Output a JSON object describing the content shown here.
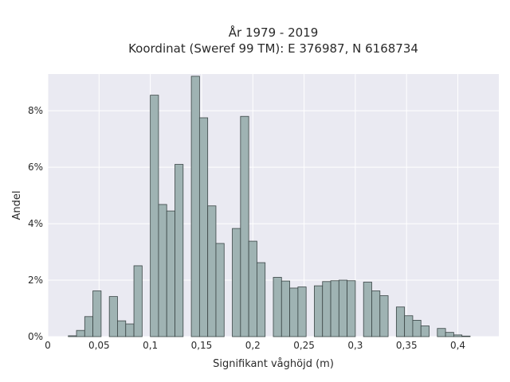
{
  "chart_data": {
    "type": "bar",
    "title": "År 1979 - 2019",
    "subtitle": "Koordinat (Sweref 99 TM): E 376987, N 6168734",
    "xlabel": "Signifikant våghöjd (m)",
    "ylabel": "Andel",
    "xlim": [
      0,
      0.44
    ],
    "ylim": [
      0,
      9.3
    ],
    "x_ticks": [
      0,
      0.05,
      0.1,
      0.15,
      0.2,
      0.25,
      0.3,
      0.35,
      0.4
    ],
    "x_tick_labels": [
      "0",
      "0,05",
      "0,1",
      "0,15",
      "0,2",
      "0,25",
      "0,3",
      "0,35",
      "0,4"
    ],
    "y_ticks": [
      0,
      2,
      4,
      6,
      8
    ],
    "y_tick_labels": [
      "0%",
      "2%",
      "4%",
      "6%",
      "8%"
    ],
    "bin_width": 0.008,
    "bin_starts": [
      0.02,
      0.028,
      0.036,
      0.044,
      0.052,
      0.06,
      0.068,
      0.076,
      0.084,
      0.092,
      0.1,
      0.108,
      0.116,
      0.124,
      0.132,
      0.14,
      0.148,
      0.156,
      0.164,
      0.172,
      0.18,
      0.188,
      0.196,
      0.204,
      0.212,
      0.22,
      0.228,
      0.236,
      0.244,
      0.252,
      0.26,
      0.268,
      0.276,
      0.284,
      0.292,
      0.3,
      0.308,
      0.316,
      0.324,
      0.332,
      0.34,
      0.348,
      0.356,
      0.364,
      0.372,
      0.38,
      0.388,
      0.396,
      0.404,
      0.412
    ],
    "values": [
      0.03,
      0.22,
      0.71,
      1.62,
      0,
      1.42,
      0.56,
      0.45,
      2.51,
      0,
      8.55,
      4.68,
      4.45,
      6.1,
      0,
      9.22,
      7.75,
      4.63,
      3.3,
      0,
      3.83,
      7.8,
      3.38,
      2.62,
      0,
      2.1,
      1.97,
      1.72,
      1.76,
      0,
      1.8,
      1.95,
      1.98,
      2.0,
      1.98,
      0,
      1.93,
      1.62,
      1.45,
      0,
      1.05,
      0.74,
      0.58,
      0.38,
      0,
      0.29,
      0.15,
      0.06,
      0.02,
      0
    ],
    "grid": true,
    "background": "#eaeaf2",
    "bar_color": "#9fb3b3",
    "edge_color": "#3a4545"
  }
}
